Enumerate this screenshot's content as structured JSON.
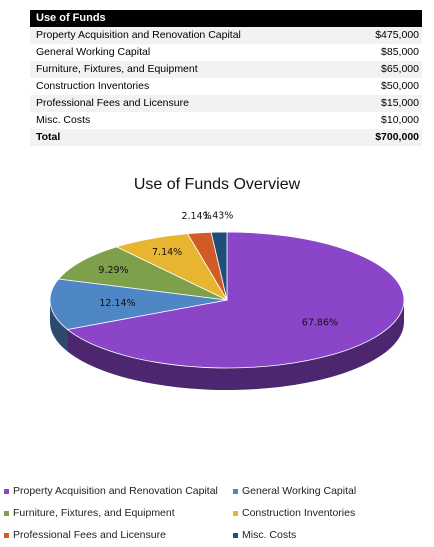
{
  "table": {
    "header": "Use of Funds",
    "rows": [
      {
        "label": "Property Acquisition and Renovation Capital",
        "value": "$475,000"
      },
      {
        "label": "General Working Capital",
        "value": "$85,000"
      },
      {
        "label": "Furniture, Fixtures, and Equipment",
        "value": "$65,000"
      },
      {
        "label": "Construction Inventories",
        "value": "$50,000"
      },
      {
        "label": "Professional Fees and Licensure",
        "value": "$15,000"
      },
      {
        "label": "Misc. Costs",
        "value": "$10,000"
      }
    ],
    "total": {
      "label": "Total",
      "value": "$700,000"
    }
  },
  "chart_data": {
    "type": "pie",
    "title": "Use of Funds Overview",
    "style": "3d",
    "legend_position": "bottom",
    "categories": [
      "Property Acquisition and Renovation Capital",
      "General Working Capital",
      "Furniture, Fixtures, and Equipment",
      "Construction Inventories",
      "Professional Fees and Licensure",
      "Misc. Costs"
    ],
    "values": [
      475000,
      85000,
      65000,
      50000,
      15000,
      10000
    ],
    "percent_labels": [
      "67.86%",
      "12.14%",
      "9.29%",
      "7.14%",
      "2.14%",
      "1.43%"
    ],
    "colors": [
      "#8a45c8",
      "#4f86c6",
      "#7ea04a",
      "#e8b530",
      "#d25a26",
      "#1f4e79"
    ]
  }
}
